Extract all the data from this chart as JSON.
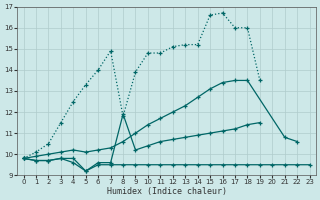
{
  "xlabel": "Humidex (Indice chaleur)",
  "background_color": "#cde8e8",
  "grid_color": "#b0cccc",
  "line_color": "#006666",
  "xlim": [
    -0.5,
    23.5
  ],
  "ylim": [
    9,
    17
  ],
  "xticks": [
    0,
    1,
    2,
    3,
    4,
    5,
    6,
    7,
    8,
    9,
    10,
    11,
    12,
    13,
    14,
    15,
    16,
    17,
    18,
    19,
    20,
    21,
    22,
    23
  ],
  "yticks": [
    9,
    10,
    11,
    12,
    13,
    14,
    15,
    16,
    17
  ],
  "series": [
    {
      "style": "dotted",
      "x": [
        0,
        1,
        2,
        3,
        4,
        5,
        6,
        7,
        8,
        9,
        10,
        11,
        12,
        13,
        14,
        15,
        16,
        17,
        18,
        19
      ],
      "y": [
        9.8,
        10.1,
        10.5,
        11.5,
        12.5,
        13.3,
        14.0,
        14.9,
        11.8,
        13.9,
        14.8,
        14.8,
        15.1,
        15.2,
        15.2,
        16.6,
        16.7,
        16.0,
        16.0,
        13.5
      ]
    },
    {
      "style": "solid",
      "x": [
        0,
        1,
        2,
        3,
        4,
        5,
        6,
        7,
        8,
        9,
        10,
        11,
        12,
        13,
        14,
        15,
        16,
        17,
        18,
        21,
        22,
        23
      ],
      "y": [
        9.8,
        9.9,
        10.0,
        10.1,
        10.2,
        10.1,
        10.2,
        10.3,
        10.6,
        11.0,
        11.4,
        11.7,
        12.0,
        12.3,
        12.7,
        13.1,
        13.4,
        13.5,
        13.5,
        10.8,
        10.6,
        null
      ]
    },
    {
      "style": "solid",
      "x": [
        0,
        1,
        2,
        3,
        4,
        5,
        6,
        7,
        8,
        9,
        10,
        11,
        12,
        13,
        14,
        15,
        16,
        17,
        18,
        19,
        20,
        21,
        22,
        23
      ],
      "y": [
        9.8,
        9.7,
        9.7,
        9.8,
        9.6,
        9.2,
        9.6,
        9.6,
        11.9,
        10.2,
        10.4,
        10.6,
        10.7,
        10.8,
        10.9,
        11.0,
        11.1,
        11.2,
        11.4,
        11.5,
        null,
        null,
        null,
        null
      ]
    },
    {
      "style": "solid",
      "x": [
        0,
        1,
        2,
        3,
        4,
        5,
        6,
        7,
        8,
        9,
        10,
        11,
        12,
        13,
        14,
        15,
        16,
        17,
        18,
        19,
        20,
        21,
        22,
        23
      ],
      "y": [
        9.8,
        9.7,
        9.7,
        9.8,
        9.8,
        9.2,
        9.5,
        9.5,
        9.5,
        9.5,
        9.5,
        9.5,
        9.5,
        9.5,
        9.5,
        9.5,
        9.5,
        9.5,
        9.5,
        9.5,
        9.5,
        9.5,
        9.5,
        9.5
      ]
    }
  ]
}
